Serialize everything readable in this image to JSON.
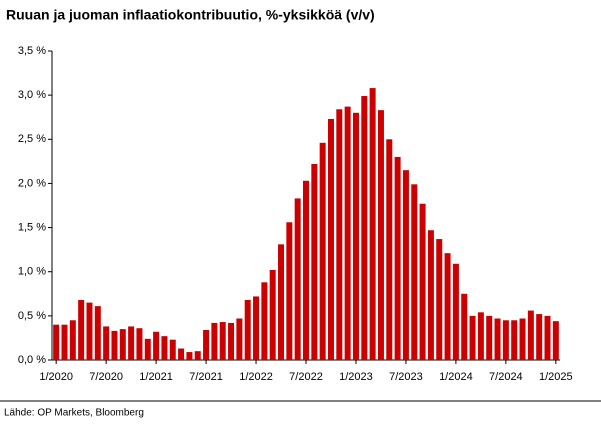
{
  "chart_data": {
    "type": "bar",
    "title": "Ruuan ja juoman inflaatiokontribuutio, %-yksikköä (v/v)",
    "source": "Lähde: OP Markets, Bloomberg",
    "color": "#cc0000",
    "categories": [
      "1/2020",
      null,
      null,
      null,
      null,
      null,
      "7/2020",
      null,
      null,
      null,
      null,
      null,
      "1/2021",
      null,
      null,
      null,
      null,
      null,
      "7/2021",
      null,
      null,
      null,
      null,
      null,
      "1/2022",
      null,
      null,
      null,
      null,
      null,
      "7/2022",
      null,
      null,
      null,
      null,
      null,
      "1/2023",
      null,
      null,
      null,
      null,
      null,
      "7/2023",
      null,
      null,
      null,
      null,
      null,
      "1/2024",
      null,
      null,
      null,
      null,
      null,
      "7/2024",
      null,
      null,
      null,
      null,
      null,
      "1/2025"
    ],
    "values": [
      0.4,
      0.4,
      0.45,
      0.68,
      0.65,
      0.61,
      0.38,
      0.33,
      0.35,
      0.38,
      0.36,
      0.24,
      0.32,
      0.27,
      0.23,
      0.13,
      0.09,
      0.1,
      0.34,
      0.42,
      0.43,
      0.42,
      0.47,
      0.68,
      0.72,
      0.88,
      1.02,
      1.31,
      1.56,
      1.83,
      2.03,
      2.22,
      2.46,
      2.73,
      2.84,
      2.87,
      2.8,
      2.99,
      3.08,
      2.83,
      2.5,
      2.3,
      2.15,
      1.99,
      1.77,
      1.47,
      1.37,
      1.21,
      1.09,
      0.75,
      0.5,
      0.54,
      0.5,
      0.47,
      0.45,
      0.45,
      0.47,
      0.56,
      0.52,
      0.5,
      0.44
    ],
    "ylim": [
      0,
      3.5
    ],
    "yticks": [
      {
        "value": 0,
        "label": "0,0 %"
      },
      {
        "value": 0.5,
        "label": "0,5 %"
      },
      {
        "value": 1,
        "label": "1,0 %"
      },
      {
        "value": 1.5,
        "label": "1,5 %"
      },
      {
        "value": 2,
        "label": "2,0 %"
      },
      {
        "value": 2.5,
        "label": "2,5 %"
      },
      {
        "value": 3,
        "label": "3,0 %"
      },
      {
        "value": 3.5,
        "label": "3,5 %"
      }
    ]
  }
}
